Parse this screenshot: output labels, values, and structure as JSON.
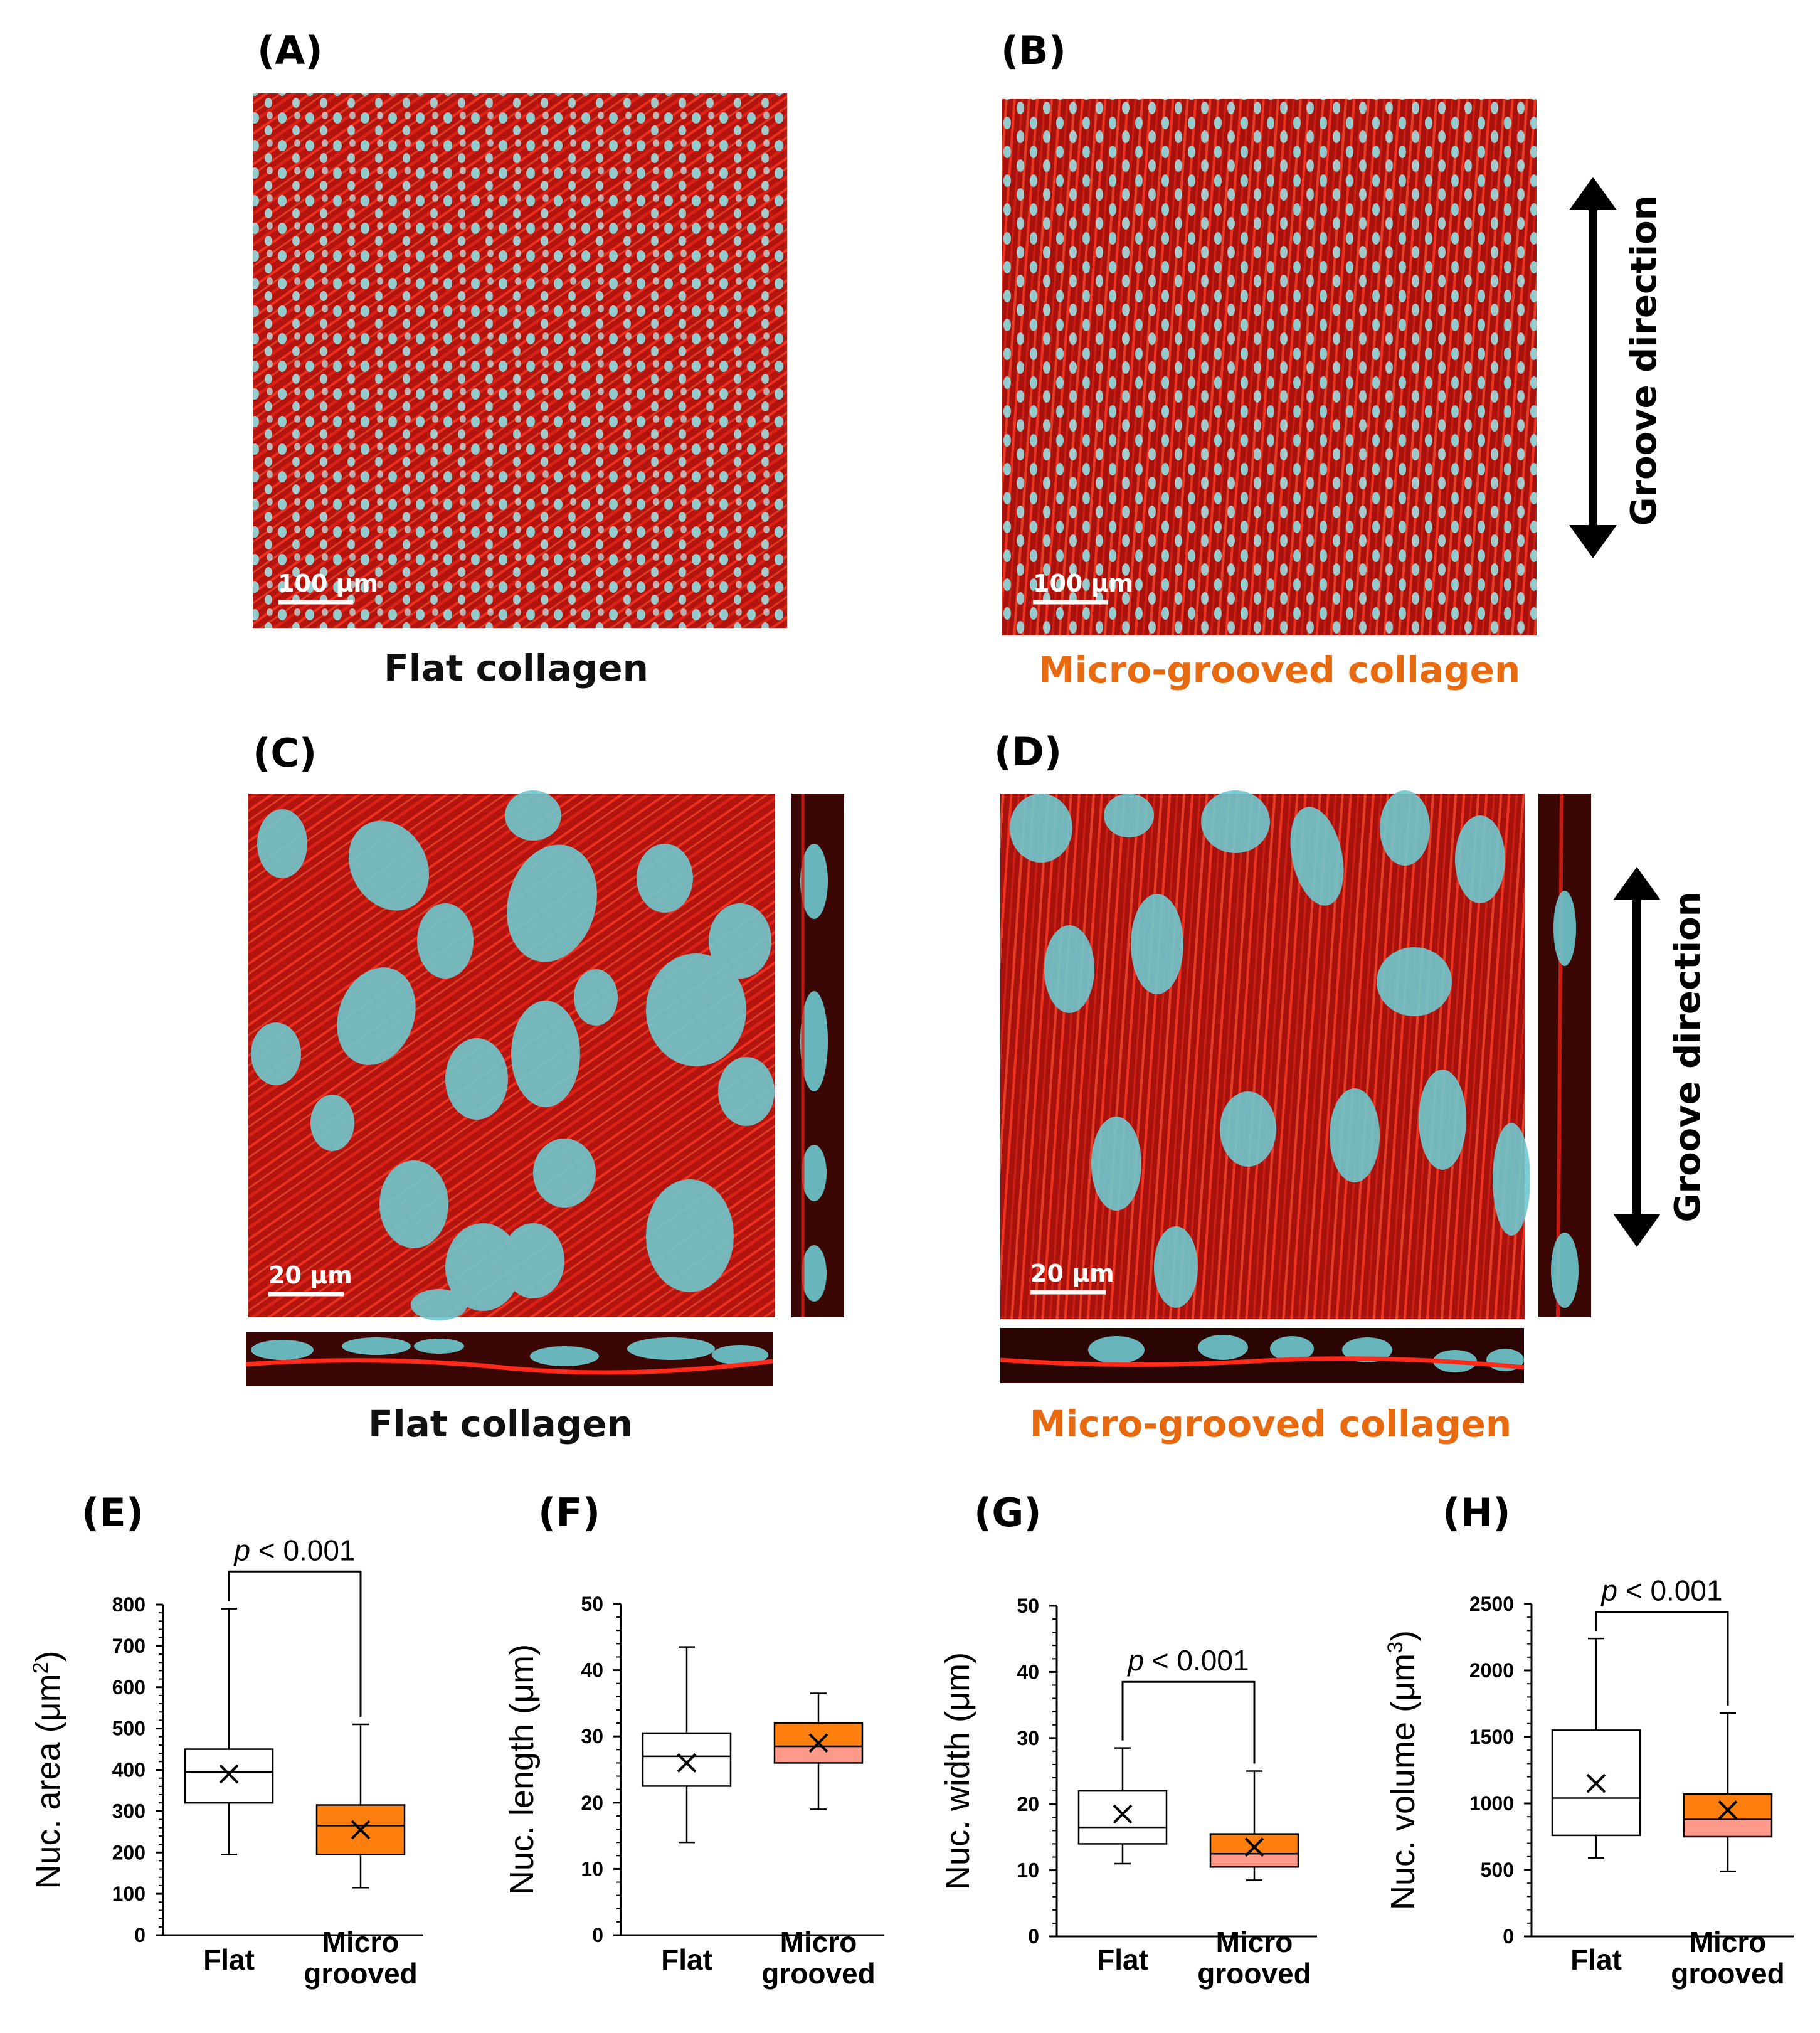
{
  "colors": {
    "actin": "#e01e14",
    "nucleus": "#5fd0d6",
    "micro_fill": "#ff7f0e",
    "micro_median_fill": "#ff9a8a",
    "micro_caption": "#e86a10",
    "flat_fill": "#ffffff"
  },
  "panels": {
    "A": {
      "label": "(A)",
      "caption": "Flat collagen",
      "scale_bar": "100 μm"
    },
    "B": {
      "label": "(B)",
      "caption": "Micro-grooved collagen",
      "scale_bar": "100 μm",
      "arrow_label": "Groove direction"
    },
    "C": {
      "label": "(C)",
      "caption": "Flat collagen",
      "scale_bar": "20 μm"
    },
    "D": {
      "label": "(D)",
      "caption": "Micro-grooved collagen",
      "scale_bar": "20 μm",
      "arrow_label": "Groove direction"
    }
  },
  "chart_data": [
    {
      "panel": "(E)",
      "type": "box",
      "ylabel": "Nuc. area (μm²)",
      "ylabel_text": "Nuc. area (μm",
      "ylabel_sup": "2",
      "ylabel_close": ")",
      "ylim": [
        0,
        800
      ],
      "yticks": [
        0,
        100,
        200,
        300,
        400,
        500,
        600,
        700,
        800
      ],
      "categories": [
        "Flat",
        "Micro grooved"
      ],
      "category_lines": [
        [
          "Flat"
        ],
        [
          "Micro",
          "grooved"
        ]
      ],
      "boxes": [
        {
          "name": "Flat",
          "min": 195,
          "q1": 320,
          "median": 395,
          "q3": 450,
          "max": 790,
          "mean": 390
        },
        {
          "name": "Micro grooved",
          "min": 115,
          "q1": 195,
          "median": 265,
          "q3": 315,
          "max": 510,
          "mean": 255
        }
      ],
      "significance": "p < 0.001",
      "sig_italic": "p",
      "sig_rest": " < 0.001",
      "sig_level": 880
    },
    {
      "panel": "(F)",
      "type": "box",
      "ylabel": "Nuc. length (μm)",
      "ylabel_text": "Nuc. length (μm)",
      "ylabel_sup": "",
      "ylabel_close": "",
      "ylim": [
        0,
        50
      ],
      "yticks": [
        0,
        10,
        20,
        30,
        40,
        50
      ],
      "categories": [
        "Flat",
        "Micro grooved"
      ],
      "category_lines": [
        [
          "Flat"
        ],
        [
          "Micro",
          "grooved"
        ]
      ],
      "boxes": [
        {
          "name": "Flat",
          "min": 14,
          "q1": 22.5,
          "median": 27,
          "q3": 30.5,
          "max": 43.5,
          "mean": 26
        },
        {
          "name": "Micro grooved",
          "min": 19,
          "q1": 26,
          "median": 28.5,
          "q3": 32,
          "max": 36.5,
          "mean": 29
        }
      ],
      "significance": null
    },
    {
      "panel": "(G)",
      "type": "box",
      "ylabel": "Nuc. width (μm)",
      "ylabel_text": "Nuc. width (μm)",
      "ylabel_sup": "",
      "ylabel_close": "",
      "ylim": [
        0,
        50
      ],
      "yticks": [
        0,
        10,
        20,
        30,
        40,
        50
      ],
      "categories": [
        "Flat",
        "Micro grooved"
      ],
      "category_lines": [
        [
          "Flat"
        ],
        [
          "Micro",
          "grooved"
        ]
      ],
      "boxes": [
        {
          "name": "Flat",
          "min": 11,
          "q1": 14,
          "median": 16.5,
          "q3": 22,
          "max": 28.5,
          "mean": 18.5
        },
        {
          "name": "Micro grooved",
          "min": 8.5,
          "q1": 10.5,
          "median": 12.5,
          "q3": 15.5,
          "max": 25,
          "mean": 13.5
        }
      ],
      "significance": "p < 0.001",
      "sig_italic": "p",
      "sig_rest": " < 0.001",
      "sig_level": 38.5
    },
    {
      "panel": "(H)",
      "type": "box",
      "ylabel": "Nuc. volume (μm³)",
      "ylabel_text": "Nuc. volume (μm",
      "ylabel_sup": "3",
      "ylabel_close": ")",
      "ylim": [
        0,
        2500
      ],
      "yticks": [
        0,
        500,
        1000,
        1500,
        2000,
        2500
      ],
      "categories": [
        "Flat",
        "Micro grooved"
      ],
      "category_lines": [
        [
          "Flat"
        ],
        [
          "Micro",
          "grooved"
        ]
      ],
      "boxes": [
        {
          "name": "Flat",
          "min": 590,
          "q1": 760,
          "median": 1040,
          "q3": 1550,
          "max": 2240,
          "mean": 1150
        },
        {
          "name": "Micro grooved",
          "min": 490,
          "q1": 750,
          "median": 880,
          "q3": 1070,
          "max": 1680,
          "mean": 950
        }
      ],
      "significance": "p < 0.001",
      "sig_italic": "p",
      "sig_rest": " < 0.001",
      "sig_level": 2440
    }
  ]
}
